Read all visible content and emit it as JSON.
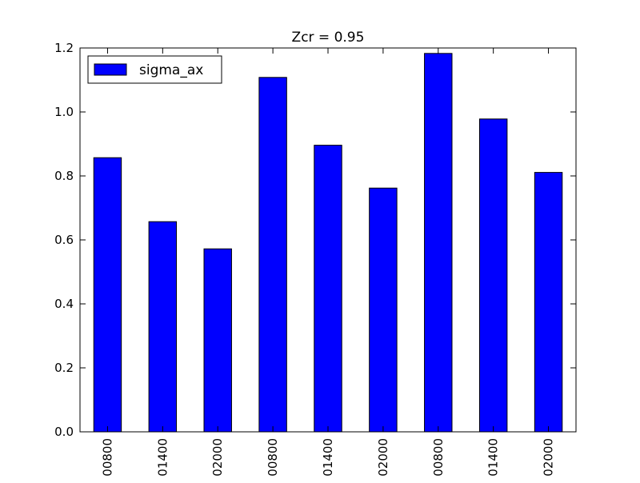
{
  "chart_data": {
    "type": "bar",
    "title": "Zcr = 0.95",
    "categories": [
      "00800",
      "01400",
      "02000",
      "00800",
      "01400",
      "02000",
      "00800",
      "01400",
      "02000"
    ],
    "series": [
      {
        "name": "sigma_ax",
        "values": [
          0.857,
          0.657,
          0.572,
          1.108,
          0.896,
          0.762,
          1.183,
          0.978,
          0.811
        ]
      }
    ],
    "xlabel": "",
    "ylabel": "",
    "ylim": [
      0.0,
      1.2
    ],
    "yticks": [
      "0.0",
      "0.2",
      "0.4",
      "0.6",
      "0.8",
      "1.0",
      "1.2"
    ],
    "grid": false,
    "legend_position": "top-left",
    "colors": {
      "bar": "#0000ff",
      "edge": "#000000"
    }
  }
}
